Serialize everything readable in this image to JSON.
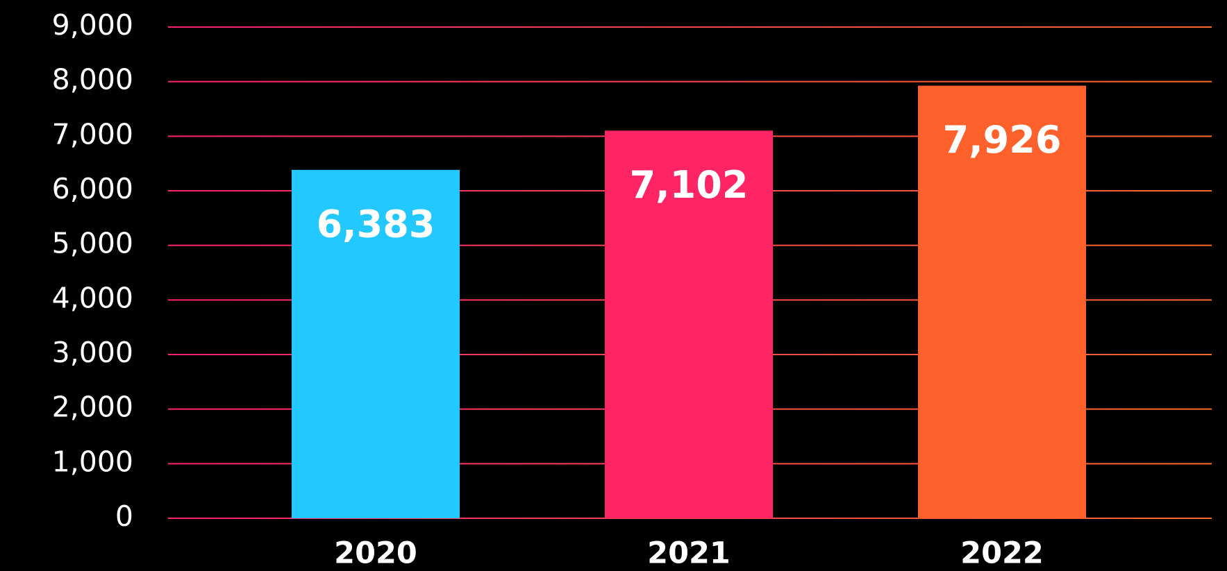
{
  "chart_data": {
    "type": "bar",
    "categories": [
      "2020",
      "2021",
      "2022"
    ],
    "values": [
      6383,
      7102,
      7926
    ],
    "value_labels": [
      "6,383",
      "7,102",
      "7,926"
    ],
    "colors": [
      "#22c8ff",
      "#ff2464",
      "#ff612d"
    ],
    "ylim": [
      0,
      9000
    ],
    "yticks": [
      0,
      {
        "value": 1000,
        "label": "1,000"
      },
      {
        "value": 2000,
        "label": "2,000"
      },
      {
        "value": 3000,
        "label": "3,000"
      },
      {
        "value": 4000,
        "label": "4,000"
      },
      {
        "value": 5000,
        "label": "5,000"
      },
      {
        "value": 6000,
        "label": "6,000"
      },
      {
        "value": 7000,
        "label": "7,000"
      },
      {
        "value": 8000,
        "label": "8,000"
      },
      {
        "value": 9000,
        "label": "9,000"
      }
    ],
    "grid": true
  }
}
